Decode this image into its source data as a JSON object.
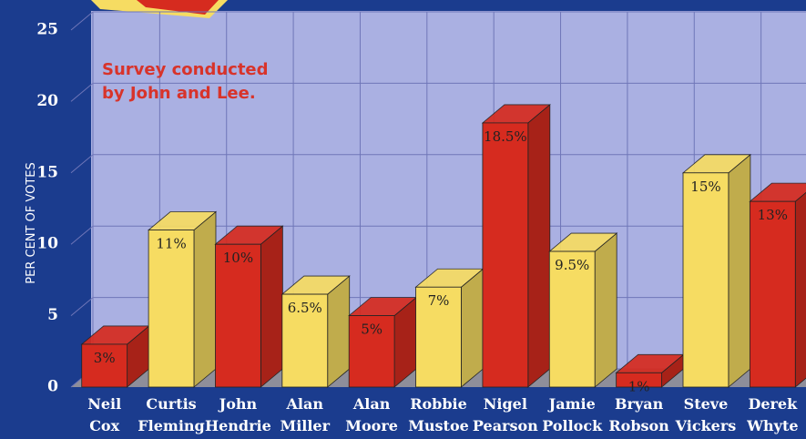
{
  "chart_data": {
    "type": "bar3d",
    "y_axis_label": "PER CENT OF VOTES",
    "annotation": "Survey conducted by John and Lee.",
    "categories": [
      "Neil Cox",
      "Curtis Fleming",
      "John Hendrie",
      "Alan Miller",
      "Alan Moore",
      "Robbie Mustoe",
      "Nigel Pearson",
      "Jamie Pollock",
      "Bryan Robson",
      "Steve Vickers",
      "Derek Whyte"
    ],
    "values": [
      3,
      11,
      10,
      6.5,
      5,
      7,
      18.5,
      9.5,
      1,
      15,
      13
    ],
    "value_labels": [
      "3%",
      "11%",
      "10%",
      "6.5%",
      "5%",
      "7%",
      "18.5%",
      "9.5%",
      "1%",
      "15%",
      "13%"
    ],
    "colors": [
      "#d62b1f",
      "#f6dc62",
      "#d62b1f",
      "#f6dc62",
      "#d62b1f",
      "#f6dc62",
      "#d62b1f",
      "#f6dc62",
      "#d62b1f",
      "#f6dc62",
      "#d62b1f"
    ],
    "ylim": [
      0,
      25
    ],
    "yticks": [
      0,
      5,
      10,
      15,
      20,
      25
    ],
    "grid": true
  }
}
